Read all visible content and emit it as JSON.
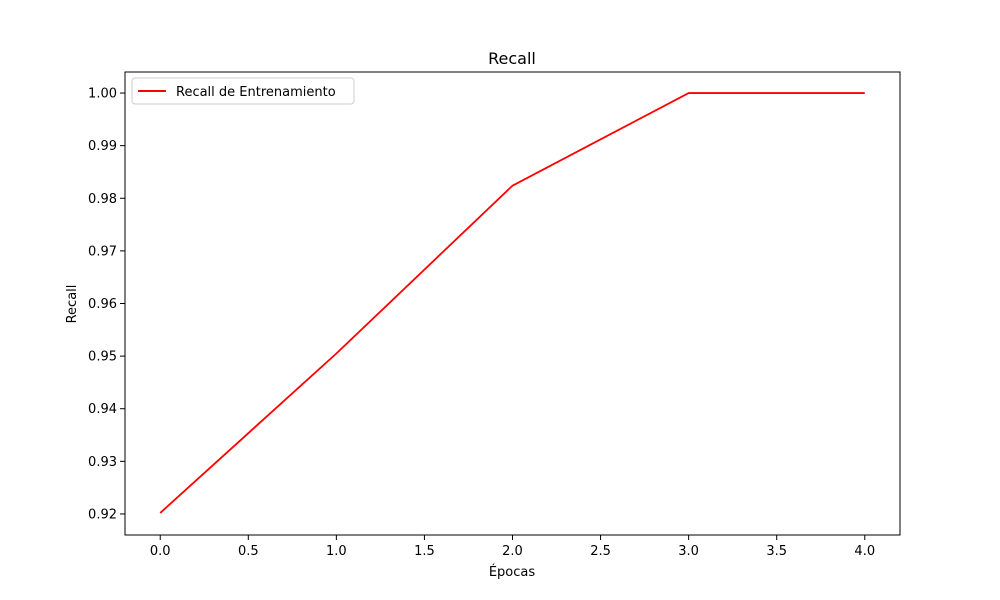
{
  "chart_data": {
    "type": "line",
    "title": "Recall",
    "xlabel": "Épocas",
    "ylabel": "Recall",
    "x": [
      0,
      1,
      2,
      3,
      4
    ],
    "xlim": [
      -0.2,
      4.2
    ],
    "ylim": [
      0.916,
      1.004
    ],
    "xticks": [
      0.0,
      0.5,
      1.0,
      1.5,
      2.0,
      2.5,
      3.0,
      3.5,
      4.0
    ],
    "xtick_labels": [
      "0.0",
      "0.5",
      "1.0",
      "1.5",
      "2.0",
      "2.5",
      "3.0",
      "3.5",
      "4.0"
    ],
    "yticks": [
      0.92,
      0.93,
      0.94,
      0.95,
      0.96,
      0.97,
      0.98,
      0.99,
      1.0
    ],
    "ytick_labels": [
      "0.92",
      "0.93",
      "0.94",
      "0.95",
      "0.96",
      "0.97",
      "0.98",
      "0.99",
      "1.00"
    ],
    "series": [
      {
        "name": "Recall de Entrenamiento",
        "color": "#ff0000",
        "values": [
          0.9202,
          0.9505,
          0.9824,
          1.0,
          1.0
        ]
      }
    ],
    "legend_position": "top-left",
    "grid": false
  }
}
